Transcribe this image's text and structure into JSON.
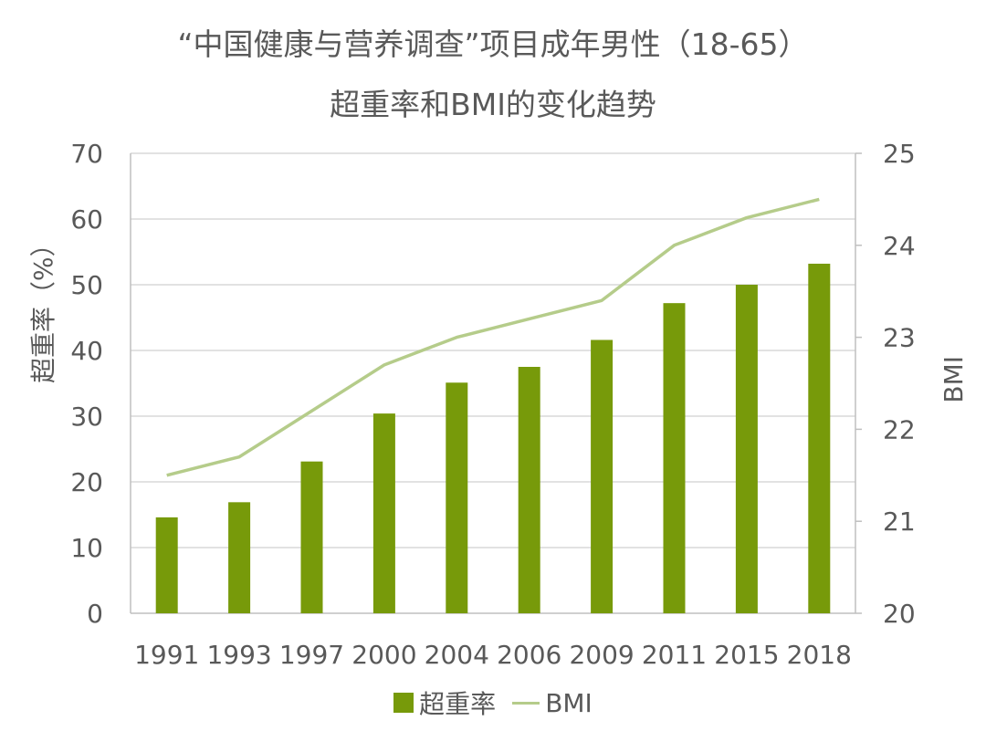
{
  "chart_data": {
    "type": "bar",
    "title_line1": "“中国健康与营养调查”项目成年男性（18-65）",
    "title_line2": "超重率和BMI的变化趋势",
    "categories": [
      "1991",
      "1993",
      "1997",
      "2000",
      "2004",
      "2006",
      "2009",
      "2011",
      "2015",
      "2018"
    ],
    "series": [
      {
        "name": "超重率",
        "type": "bar",
        "axis": "left",
        "color": "#779a0a",
        "values": [
          14.6,
          16.9,
          23.1,
          30.4,
          35.1,
          37.5,
          41.6,
          47.2,
          50.0,
          53.2
        ]
      },
      {
        "name": "BMI",
        "type": "line",
        "axis": "right",
        "color": "#b5cc8a",
        "values": [
          21.5,
          21.7,
          22.2,
          22.7,
          23.0,
          23.2,
          23.4,
          24.0,
          24.3,
          24.5
        ]
      }
    ],
    "ylabel": "超重率（%）",
    "y2label": "BMI",
    "ylim": [
      0,
      70
    ],
    "y2lim": [
      20,
      25
    ],
    "yticks": [
      "0",
      "10",
      "20",
      "30",
      "40",
      "50",
      "60",
      "70"
    ],
    "y2ticks": [
      "20",
      "21",
      "22",
      "23",
      "24",
      "25"
    ],
    "grid": true,
    "legend": "bottom"
  }
}
